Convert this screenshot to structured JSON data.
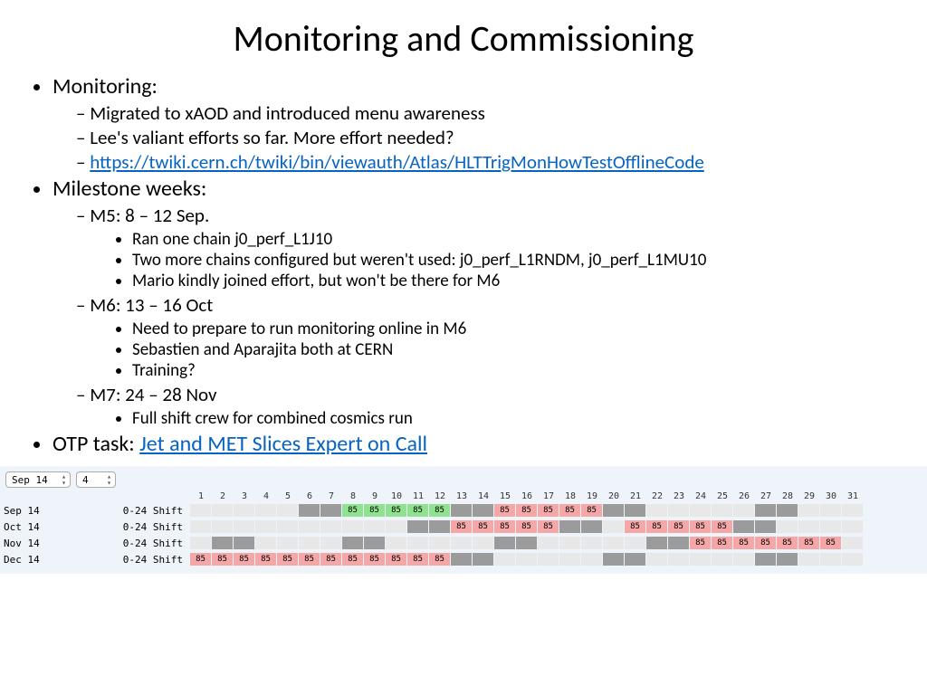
{
  "title": "Monitoring and Commissioning",
  "bullets": {
    "monitoring": {
      "label": "Monitoring:",
      "items": [
        "Migrated to xAOD and introduced menu awareness",
        "Lee's valiant efforts so far. More effort needed?"
      ],
      "link_text": "https://twiki.cern.ch/twiki/bin/viewauth/Atlas/HLTTrigMonHowTestOfflineCode"
    },
    "milestone": {
      "label": "Milestone weeks:",
      "m5": {
        "label": "M5: 8 – 12 Sep.",
        "items": [
          "Ran one chain j0_perf_L1J10",
          "Two more chains configured but weren't used: j0_perf_L1RNDM, j0_perf_L1MU10",
          "Mario kindly joined effort, but won't be there for M6"
        ]
      },
      "m6": {
        "label": "M6: 13 – 16 Oct",
        "items": [
          "Need to prepare to run monitoring online in M6",
          "Sebastien and Aparajita both at CERN",
          "Training?"
        ]
      },
      "m7": {
        "label": "M7: 24 – 28 Nov",
        "items": [
          "Full shift crew for combined cosmics run"
        ]
      }
    },
    "otp": {
      "prefix": "OTP task: ",
      "link_text": "Jet and MET Slices Expert on Call"
    }
  },
  "schedule": {
    "selector_month": "Sep 14",
    "selector_weeks": "4",
    "days": 31,
    "colors": {
      "panel_bg": "#eef4fa",
      "cell_blank": "#e8e8e8",
      "cell_grey": "#9b9b9b",
      "cell_green": "#8fe28f",
      "cell_pink": "#f5a7a7"
    },
    "cell_value": "85",
    "shift_label": "0-24 Shift",
    "rows": [
      {
        "label": "Sep 14",
        "cells": [
          0,
          0,
          0,
          0,
          0,
          1,
          1,
          2,
          2,
          2,
          2,
          2,
          1,
          1,
          3,
          3,
          3,
          3,
          3,
          1,
          1,
          0,
          0,
          0,
          0,
          0,
          1,
          1,
          0,
          0,
          0
        ]
      },
      {
        "label": "Oct 14",
        "cells": [
          0,
          0,
          0,
          0,
          0,
          0,
          0,
          0,
          0,
          0,
          1,
          1,
          3,
          3,
          3,
          3,
          3,
          1,
          1,
          0,
          3,
          3,
          3,
          3,
          3,
          1,
          1,
          0,
          0,
          0,
          0
        ]
      },
      {
        "label": "Nov 14",
        "cells": [
          0,
          1,
          1,
          0,
          0,
          0,
          0,
          1,
          1,
          0,
          0,
          0,
          0,
          0,
          1,
          1,
          0,
          0,
          0,
          0,
          0,
          1,
          1,
          3,
          3,
          3,
          3,
          3,
          3,
          3,
          0
        ]
      },
      {
        "label": "Dec 14",
        "cells": [
          3,
          3,
          3,
          3,
          3,
          3,
          3,
          3,
          3,
          3,
          3,
          3,
          1,
          1,
          0,
          0,
          0,
          0,
          0,
          1,
          1,
          0,
          0,
          0,
          0,
          0,
          1,
          1,
          0,
          0,
          0
        ]
      }
    ],
    "legend": {
      "0": "blank",
      "1": "grey",
      "2": "green",
      "3": "pink"
    }
  }
}
